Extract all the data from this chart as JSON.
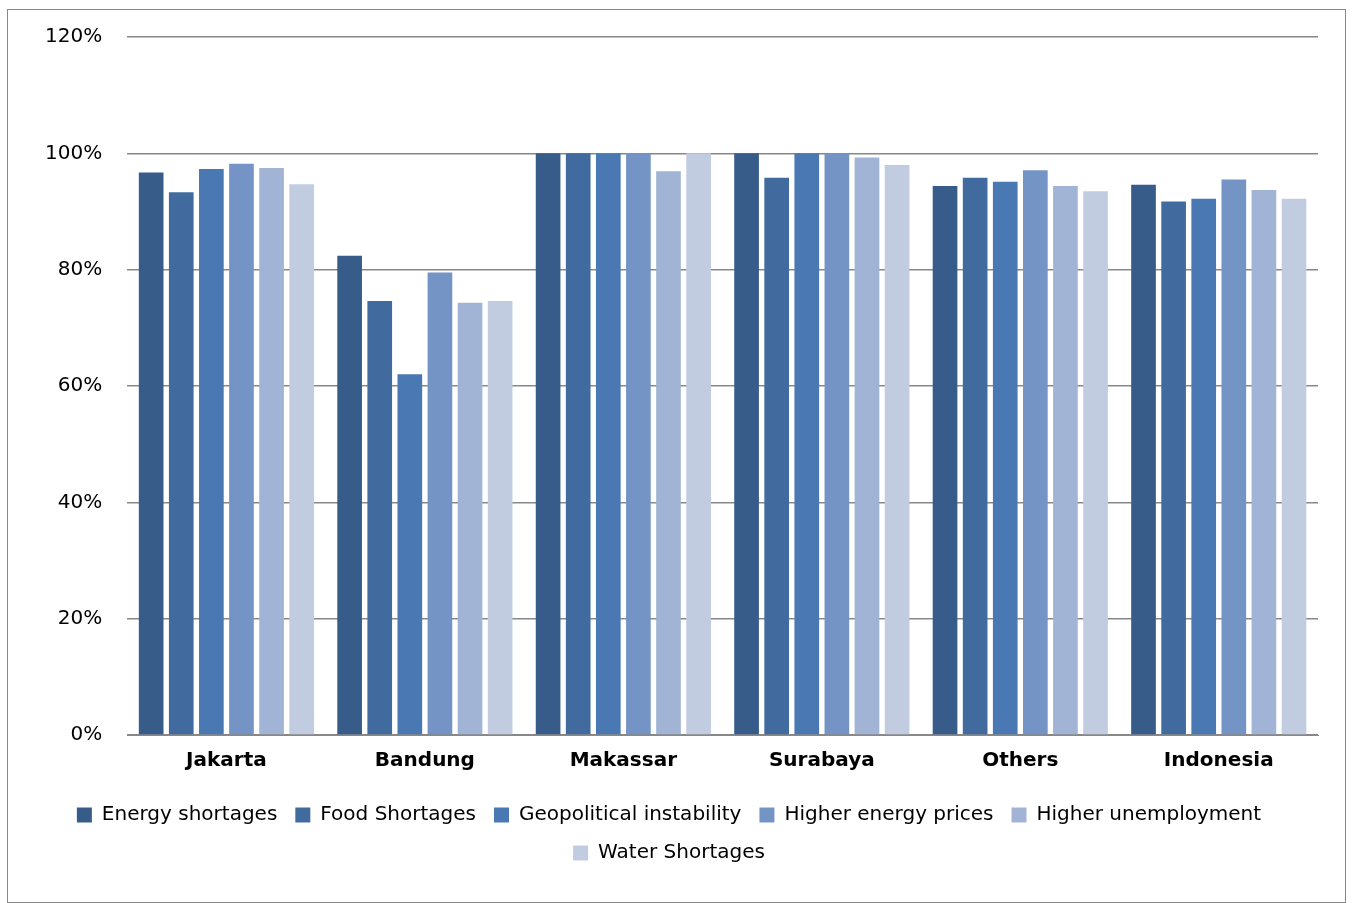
{
  "chart_data": {
    "type": "bar",
    "categories": [
      "Jakarta",
      "Bandung",
      "Makassar",
      "Surabaya",
      "Others",
      "Indonesia"
    ],
    "series": [
      {
        "name": "Energy shortages",
        "color": "#375c8a",
        "values": [
          96.7,
          82.4,
          100,
          100,
          94.4,
          94.6
        ]
      },
      {
        "name": "Food Shortages",
        "color": "#416b9e",
        "values": [
          93.3,
          74.6,
          100,
          95.8,
          95.8,
          91.7
        ]
      },
      {
        "name": "Geopolitical instability",
        "color": "#4a78b3",
        "values": [
          97.3,
          62,
          100,
          100,
          95.1,
          92.2
        ]
      },
      {
        "name": "Higher energy prices",
        "color": "#7594c6",
        "values": [
          98.2,
          79.5,
          100,
          100,
          97.1,
          95.5
        ]
      },
      {
        "name": "Higher unemployment",
        "color": "#a1b4d6",
        "values": [
          97.5,
          74.3,
          96.9,
          99.3,
          94.4,
          93.7
        ]
      },
      {
        "name": "Water Shortages",
        "color": "#c2cce1",
        "values": [
          94.7,
          74.6,
          100,
          98,
          93.5,
          92.2
        ]
      }
    ],
    "ylim": [
      0,
      120
    ],
    "yticks": [
      {
        "value": 0,
        "label": "0%"
      },
      {
        "value": 20,
        "label": "20%"
      },
      {
        "value": 40,
        "label": "40%"
      },
      {
        "value": 60,
        "label": "60%"
      },
      {
        "value": 80,
        "label": "80%"
      },
      {
        "value": 100,
        "label": "100%"
      },
      {
        "value": 120,
        "label": "120%"
      }
    ],
    "grid": "y",
    "legend": "bottom"
  }
}
